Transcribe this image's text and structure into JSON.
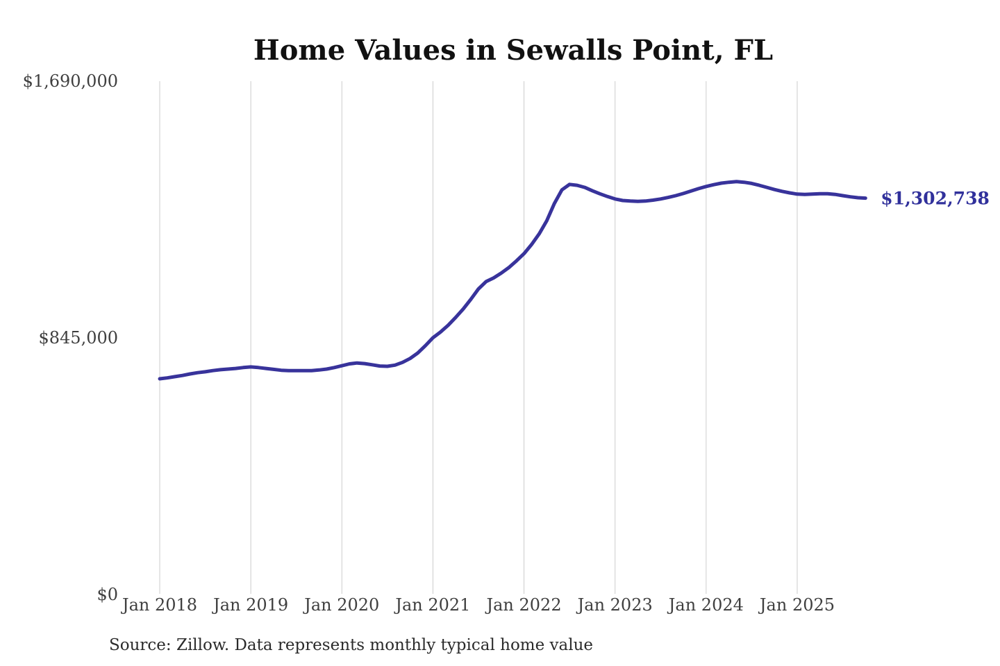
{
  "title": "Home Values in Sewalls Point, FL",
  "source_note": "Source: Zillow. Data represents monthly typical home value",
  "colors": {
    "line": "#38339b",
    "end_label": "#30309b",
    "grid": "#cccccc",
    "title": "#111111",
    "axis_text": "#3f3f3f",
    "background": "#ffffff"
  },
  "chart_data": {
    "type": "line",
    "title": "Home Values in Sewalls Point, FL",
    "xlabel": "",
    "ylabel": "",
    "ylim": [
      0,
      1690000
    ],
    "grid": "vertical-only",
    "legend": "none",
    "x_tick_labels": [
      "Jan 2018",
      "Jan 2019",
      "Jan 2020",
      "Jan 2021",
      "Jan 2022",
      "Jan 2023",
      "Jan 2024",
      "Jan 2025"
    ],
    "y_ticks": [
      {
        "label": "$0",
        "value": 0
      },
      {
        "label": "$845,000",
        "value": 845000
      },
      {
        "label": "$1,690,000",
        "value": 1690000
      }
    ],
    "last_value_label": "$1,302,738",
    "last_value": 1302738,
    "series": [
      {
        "name": "Monthly typical home value",
        "months": [
          "2018-01",
          "2018-02",
          "2018-03",
          "2018-04",
          "2018-05",
          "2018-06",
          "2018-07",
          "2018-08",
          "2018-09",
          "2018-10",
          "2018-11",
          "2018-12",
          "2019-01",
          "2019-02",
          "2019-03",
          "2019-04",
          "2019-05",
          "2019-06",
          "2019-07",
          "2019-08",
          "2019-09",
          "2019-10",
          "2019-11",
          "2019-12",
          "2020-01",
          "2020-02",
          "2020-03",
          "2020-04",
          "2020-05",
          "2020-06",
          "2020-07",
          "2020-08",
          "2020-09",
          "2020-10",
          "2020-11",
          "2020-12",
          "2021-01",
          "2021-02",
          "2021-03",
          "2021-04",
          "2021-05",
          "2021-06",
          "2021-07",
          "2021-08",
          "2021-09",
          "2021-10",
          "2021-11",
          "2021-12",
          "2022-01",
          "2022-02",
          "2022-03",
          "2022-04",
          "2022-05",
          "2022-06",
          "2022-07",
          "2022-08",
          "2022-09",
          "2022-10",
          "2022-11",
          "2022-12",
          "2023-01",
          "2023-02",
          "2023-03",
          "2023-04",
          "2023-05",
          "2023-06",
          "2023-07",
          "2023-08",
          "2023-09",
          "2023-10",
          "2023-11",
          "2023-12",
          "2024-01",
          "2024-02",
          "2024-03",
          "2024-04",
          "2024-05",
          "2024-06",
          "2024-07",
          "2024-08",
          "2024-09",
          "2024-10",
          "2024-11",
          "2024-12",
          "2025-01",
          "2025-02",
          "2025-03",
          "2025-04",
          "2025-05",
          "2025-06",
          "2025-07",
          "2025-08",
          "2025-09",
          "2025-10"
        ],
        "values": [
          708000,
          711000,
          715000,
          719000,
          724000,
          728000,
          731000,
          735000,
          738000,
          740000,
          742000,
          745000,
          747000,
          745000,
          742000,
          739000,
          736000,
          735000,
          735000,
          735000,
          735000,
          737000,
          740000,
          745000,
          751000,
          757000,
          760000,
          758000,
          754000,
          750000,
          749000,
          753000,
          762000,
          775000,
          793000,
          817000,
          843000,
          862000,
          884000,
          910000,
          938000,
          970000,
          1004000,
          1028000,
          1040000,
          1056000,
          1074000,
          1096000,
          1120000,
          1150000,
          1185000,
          1228000,
          1285000,
          1330000,
          1348000,
          1345000,
          1338000,
          1327000,
          1317000,
          1308000,
          1300000,
          1295000,
          1293000,
          1292000,
          1293000,
          1296000,
          1300000,
          1305000,
          1311000,
          1318000,
          1326000,
          1334000,
          1341000,
          1347000,
          1352000,
          1355000,
          1357000,
          1355000,
          1351000,
          1345000,
          1338000,
          1331000,
          1325000,
          1320000,
          1316000,
          1315000,
          1316000,
          1317000,
          1317000,
          1315000,
          1311000,
          1307000,
          1304000,
          1302738
        ]
      }
    ]
  }
}
